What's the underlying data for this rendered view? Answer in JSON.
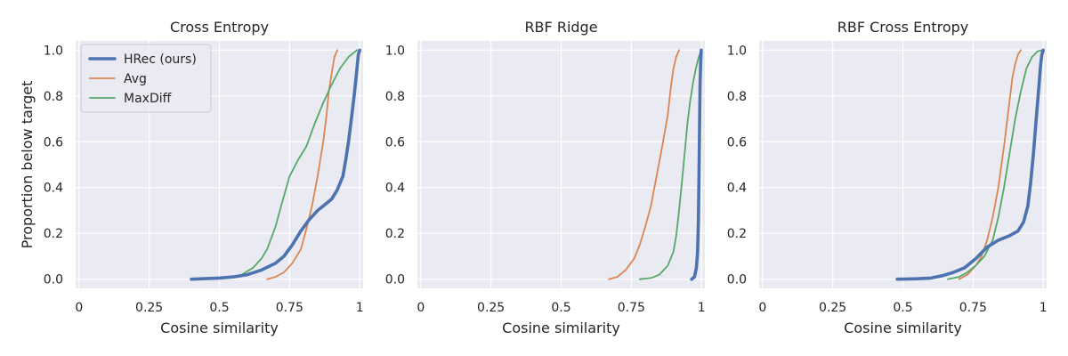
{
  "figure": {
    "ylabel": "Proportion below target",
    "legend": {
      "placement": "top-left",
      "entries": [
        {
          "label": "HRec (ours)",
          "color": "#4c72b0"
        },
        {
          "label": "Avg",
          "color": "#dd8452"
        },
        {
          "label": "MaxDiff",
          "color": "#55a868"
        }
      ]
    },
    "colors": {
      "background": "#eaeaf2",
      "grid": "#ffffff"
    }
  },
  "chart_data": [
    {
      "type": "line",
      "title": "Cross Entropy",
      "xlabel": "Cosine similarity",
      "ylabel": "Proportion below target",
      "xlim": [
        0,
        1
      ],
      "ylim": [
        0,
        1
      ],
      "x_ticks": [
        "0",
        "0.25",
        "0.5",
        "0.75",
        "1"
      ],
      "y_ticks": [
        "0.0",
        "0.2",
        "0.4",
        "0.6",
        "0.8",
        "1.0"
      ],
      "grid": true,
      "legend": "top-left",
      "series": [
        {
          "name": "HRec (ours)",
          "color": "#4c72b0",
          "x": [
            0.4,
            0.5,
            0.55,
            0.6,
            0.65,
            0.7,
            0.73,
            0.76,
            0.79,
            0.82,
            0.85,
            0.88,
            0.9,
            0.92,
            0.94,
            0.95,
            0.96,
            0.97,
            0.98,
            0.99,
            0.995,
            1.0
          ],
          "y": [
            0.0,
            0.005,
            0.01,
            0.02,
            0.04,
            0.07,
            0.1,
            0.15,
            0.21,
            0.26,
            0.3,
            0.33,
            0.35,
            0.39,
            0.45,
            0.52,
            0.6,
            0.7,
            0.8,
            0.92,
            0.98,
            1.0
          ]
        },
        {
          "name": "Avg",
          "color": "#dd8452",
          "x": [
            0.67,
            0.7,
            0.73,
            0.76,
            0.79,
            0.81,
            0.83,
            0.85,
            0.87,
            0.88,
            0.89,
            0.9,
            0.91,
            0.92
          ],
          "y": [
            0.0,
            0.01,
            0.03,
            0.07,
            0.13,
            0.22,
            0.32,
            0.45,
            0.6,
            0.7,
            0.82,
            0.9,
            0.97,
            1.0
          ]
        },
        {
          "name": "MaxDiff",
          "color": "#55a868",
          "x": [
            0.43,
            0.5,
            0.55,
            0.58,
            0.62,
            0.65,
            0.67,
            0.7,
            0.72,
            0.75,
            0.78,
            0.81,
            0.84,
            0.87,
            0.9,
            0.93,
            0.96,
            0.99
          ],
          "y": [
            0.0,
            0.003,
            0.01,
            0.02,
            0.05,
            0.09,
            0.13,
            0.23,
            0.32,
            0.45,
            0.52,
            0.58,
            0.68,
            0.77,
            0.85,
            0.92,
            0.97,
            1.0
          ]
        }
      ]
    },
    {
      "type": "line",
      "title": "RBF Ridge",
      "xlabel": "Cosine similarity",
      "xlim": [
        0,
        1
      ],
      "ylim": [
        0,
        1
      ],
      "x_ticks": [
        "0",
        "0.25",
        "0.5",
        "0.75",
        "1"
      ],
      "y_ticks": [
        "0.0",
        "0.2",
        "0.4",
        "0.6",
        "0.8",
        "1.0"
      ],
      "grid": true,
      "series": [
        {
          "name": "HRec (ours)",
          "color": "#4c72b0",
          "x": [
            0.965,
            0.975,
            0.982,
            0.986,
            0.989,
            0.991,
            0.993,
            0.995,
            0.997,
            0.999
          ],
          "y": [
            0.0,
            0.01,
            0.05,
            0.12,
            0.25,
            0.45,
            0.65,
            0.85,
            0.95,
            1.0
          ]
        },
        {
          "name": "Avg",
          "color": "#dd8452",
          "x": [
            0.67,
            0.7,
            0.73,
            0.76,
            0.78,
            0.8,
            0.82,
            0.84,
            0.86,
            0.88,
            0.89,
            0.9,
            0.91,
            0.92
          ],
          "y": [
            0.0,
            0.01,
            0.04,
            0.09,
            0.15,
            0.23,
            0.32,
            0.45,
            0.58,
            0.72,
            0.83,
            0.92,
            0.97,
            1.0
          ]
        },
        {
          "name": "MaxDiff",
          "color": "#55a868",
          "x": [
            0.78,
            0.82,
            0.85,
            0.88,
            0.9,
            0.91,
            0.92,
            0.93,
            0.94,
            0.95,
            0.96,
            0.97,
            0.98,
            0.99,
            1.0
          ],
          "y": [
            0.0,
            0.005,
            0.02,
            0.06,
            0.12,
            0.19,
            0.3,
            0.42,
            0.55,
            0.68,
            0.78,
            0.86,
            0.92,
            0.97,
            1.0
          ]
        }
      ]
    },
    {
      "type": "line",
      "title": "RBF Cross Entropy",
      "xlabel": "Cosine similarity",
      "xlim": [
        0,
        1
      ],
      "ylim": [
        0,
        1
      ],
      "x_ticks": [
        "0",
        "0.25",
        "0.5",
        "0.75",
        "1"
      ],
      "y_ticks": [
        "0.0",
        "0.2",
        "0.4",
        "0.6",
        "0.8",
        "1.0"
      ],
      "grid": true,
      "series": [
        {
          "name": "HRec (ours)",
          "color": "#4c72b0",
          "x": [
            0.48,
            0.55,
            0.6,
            0.64,
            0.68,
            0.72,
            0.76,
            0.8,
            0.84,
            0.88,
            0.91,
            0.93,
            0.945,
            0.955,
            0.965,
            0.975,
            0.985,
            0.99,
            0.995,
            1.0
          ],
          "y": [
            0.0,
            0.002,
            0.005,
            0.015,
            0.03,
            0.05,
            0.09,
            0.14,
            0.17,
            0.19,
            0.21,
            0.25,
            0.32,
            0.42,
            0.55,
            0.7,
            0.85,
            0.93,
            0.98,
            1.0
          ]
        },
        {
          "name": "Avg",
          "color": "#dd8452",
          "x": [
            0.7,
            0.73,
            0.76,
            0.78,
            0.8,
            0.82,
            0.84,
            0.86,
            0.88,
            0.89,
            0.9,
            0.91,
            0.92
          ],
          "y": [
            0.0,
            0.02,
            0.06,
            0.1,
            0.17,
            0.27,
            0.4,
            0.58,
            0.78,
            0.88,
            0.94,
            0.98,
            1.0
          ]
        },
        {
          "name": "MaxDiff",
          "color": "#55a868",
          "x": [
            0.66,
            0.7,
            0.73,
            0.76,
            0.79,
            0.82,
            0.84,
            0.86,
            0.88,
            0.9,
            0.92,
            0.94,
            0.96,
            0.98,
            1.0
          ],
          "y": [
            0.0,
            0.01,
            0.03,
            0.06,
            0.1,
            0.17,
            0.27,
            0.4,
            0.55,
            0.7,
            0.82,
            0.92,
            0.97,
            0.995,
            1.0
          ]
        }
      ]
    }
  ]
}
